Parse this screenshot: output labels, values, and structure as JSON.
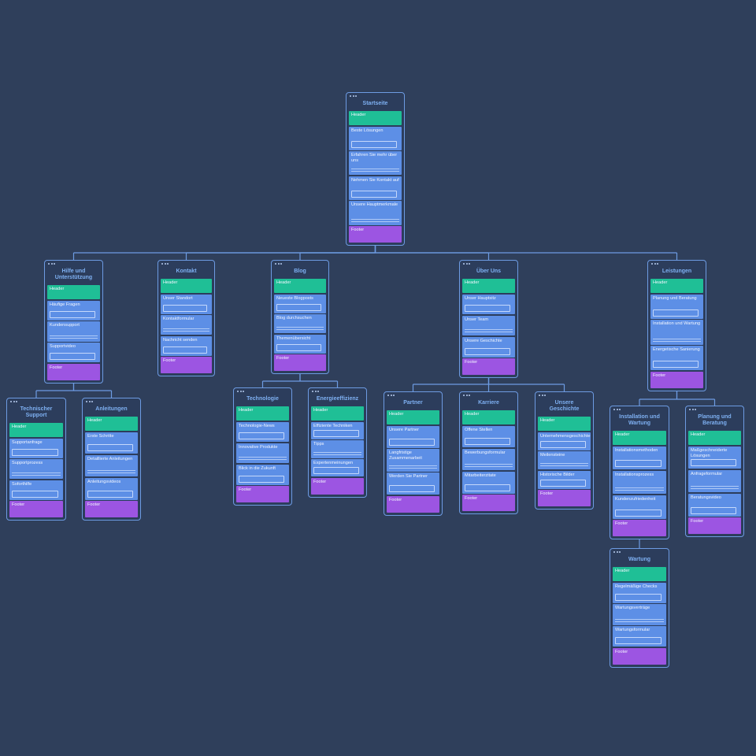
{
  "nodes": [
    {
      "title": "Startseite",
      "sections": [
        "Header",
        "Beste Lösungen",
        "Erfahren Sie mehr über uns",
        "Nehmen Sie Kontakt auf",
        "Unsere Hauptmerkmale",
        "Footer"
      ]
    },
    {
      "title": "Hilfe und Unterstützung",
      "sections": [
        "Header",
        "Häufige Fragen",
        "Kundensupport",
        "Supportvideo",
        "Footer"
      ]
    },
    {
      "title": "Kontakt",
      "sections": [
        "Header",
        "Unser Standort",
        "Kontaktformular",
        "Nachricht senden",
        "Footer"
      ]
    },
    {
      "title": "Blog",
      "sections": [
        "Header",
        "Neueste Blogposts",
        "Blog durchsuchen",
        "Themenübersicht",
        "Footer"
      ]
    },
    {
      "title": "Über Uns",
      "sections": [
        "Header",
        "Unser Hauptsitz",
        "Unser Team",
        "Unsere Geschichte",
        "Footer"
      ]
    },
    {
      "title": "Leistungen",
      "sections": [
        "Header",
        "Planung und Beratung",
        "Installation und Wartung",
        "Energetische Sanierung",
        "Footer"
      ]
    },
    {
      "title": "Technischer Support",
      "sections": [
        "Header",
        "Supportanfrage",
        "Supportprozess",
        "Soforthilfe",
        "Footer"
      ]
    },
    {
      "title": "Anleitungen",
      "sections": [
        "Header",
        "Erste Schritte",
        "Detaillierte Anleitungen",
        "Anleitungsvideos",
        "Footer"
      ]
    },
    {
      "title": "Technologie",
      "sections": [
        "Header",
        "Technologie-News",
        "Innovative Produkte",
        "Blick in die Zukunft",
        "Footer"
      ]
    },
    {
      "title": "Energieeffizienz",
      "sections": [
        "Header",
        "Effiziente Techniken",
        "Tipps",
        "Expertenmeinungen",
        "Footer"
      ]
    },
    {
      "title": "Partner",
      "sections": [
        "Header",
        "Unsere Partner",
        "Langfristige Zusammenarbeit",
        "Werden Sie Partner",
        "Footer"
      ]
    },
    {
      "title": "Karriere",
      "sections": [
        "Header",
        "Offene Stellen",
        "Bewerbungsformular",
        "Mitarbeiterzitate",
        "Footer"
      ]
    },
    {
      "title": "Unsere Geschichte",
      "sections": [
        "Header",
        "Unternehmensgeschichte",
        "Meilensteine",
        "Historische Bilder",
        "Footer"
      ]
    },
    {
      "title": "Installation und Wartung",
      "sections": [
        "Header",
        "Installationsmethoden",
        "Installationsprozess",
        "Kundenzufriedenheit",
        "Footer"
      ]
    },
    {
      "title": "Planung und Beratung",
      "sections": [
        "Header",
        "Maßgeschneiderte Lösungen",
        "Anfrageformular",
        "Beratungsvideo",
        "Footer"
      ]
    },
    {
      "title": "Wartung",
      "sections": [
        "Header",
        "Regelmäßige Checks",
        "Wartungsverträge",
        "Wartungsformular",
        "Footer"
      ]
    }
  ]
}
